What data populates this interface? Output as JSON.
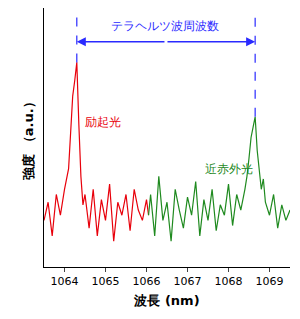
{
  "chart_data": {
    "type": "line",
    "x_label": "波長 (nm)",
    "y_label": "強度 （a.u.）",
    "xlim": [
      1063.5,
      1069.5
    ],
    "xticks": [
      1064,
      1065,
      1066,
      1067,
      1068,
      1069
    ],
    "ylim": [
      0,
      100
    ],
    "tick_labels": "x",
    "grid": false,
    "series": [
      {
        "color": "#e8000b",
        "x": [
          1063.5,
          1063.6,
          1063.7,
          1063.8,
          1063.9,
          1064.0,
          1064.1,
          1064.15,
          1064.2,
          1064.25,
          1064.3,
          1064.35,
          1064.4,
          1064.45,
          1064.5,
          1064.6,
          1064.7,
          1064.8,
          1064.9,
          1065.0,
          1065.1,
          1065.2,
          1065.3,
          1065.4,
          1065.5,
          1065.6,
          1065.7,
          1065.8,
          1065.9,
          1066.0,
          1066.05
        ],
        "values": [
          18,
          25,
          12,
          28,
          20,
          30,
          38,
          52,
          66,
          72,
          79,
          55,
          35,
          24,
          28,
          15,
          30,
          12,
          26,
          18,
          32,
          10,
          25,
          20,
          28,
          14,
          30,
          22,
          18,
          26,
          20
        ]
      },
      {
        "color": "#1f8a1f",
        "x": [
          1066.05,
          1066.1,
          1066.2,
          1066.3,
          1066.4,
          1066.5,
          1066.6,
          1066.7,
          1066.8,
          1066.9,
          1067.0,
          1067.1,
          1067.2,
          1067.3,
          1067.4,
          1067.5,
          1067.6,
          1067.7,
          1067.8,
          1067.9,
          1068.0,
          1068.1,
          1068.2,
          1068.3,
          1068.4,
          1068.45,
          1068.5,
          1068.55,
          1068.6,
          1068.65,
          1068.7,
          1068.75,
          1068.8,
          1068.85,
          1068.9,
          1069.0,
          1069.1,
          1069.2,
          1069.3,
          1069.4,
          1069.5
        ],
        "values": [
          20,
          28,
          12,
          35,
          18,
          25,
          10,
          30,
          22,
          15,
          27,
          20,
          33,
          12,
          26,
          18,
          30,
          14,
          24,
          20,
          32,
          16,
          28,
          22,
          30,
          35,
          42,
          50,
          54,
          58,
          45,
          38,
          30,
          34,
          25,
          20,
          28,
          15,
          24,
          18,
          22
        ]
      }
    ],
    "annotations": [
      {
        "text": "テラヘルツ波周波数",
        "x": 1066.45,
        "y": 93,
        "color": "#2a2aff"
      },
      {
        "text": "励起光",
        "x": 1064.95,
        "y": 56,
        "color": "#e8000b"
      },
      {
        "text": "近赤外光",
        "x": 1068.0,
        "y": 38,
        "color": "#1f8a1f"
      }
    ],
    "guides": {
      "color": "#2a2aff",
      "line_style": "dashed",
      "top": 97,
      "lines": [
        {
          "x": 1064.3,
          "y": 79
        },
        {
          "x": 1068.65,
          "y": 58
        }
      ]
    },
    "arrow": {
      "color": "#2a2aff",
      "from": 1064.3,
      "to": 1068.65,
      "y": 87
    }
  }
}
